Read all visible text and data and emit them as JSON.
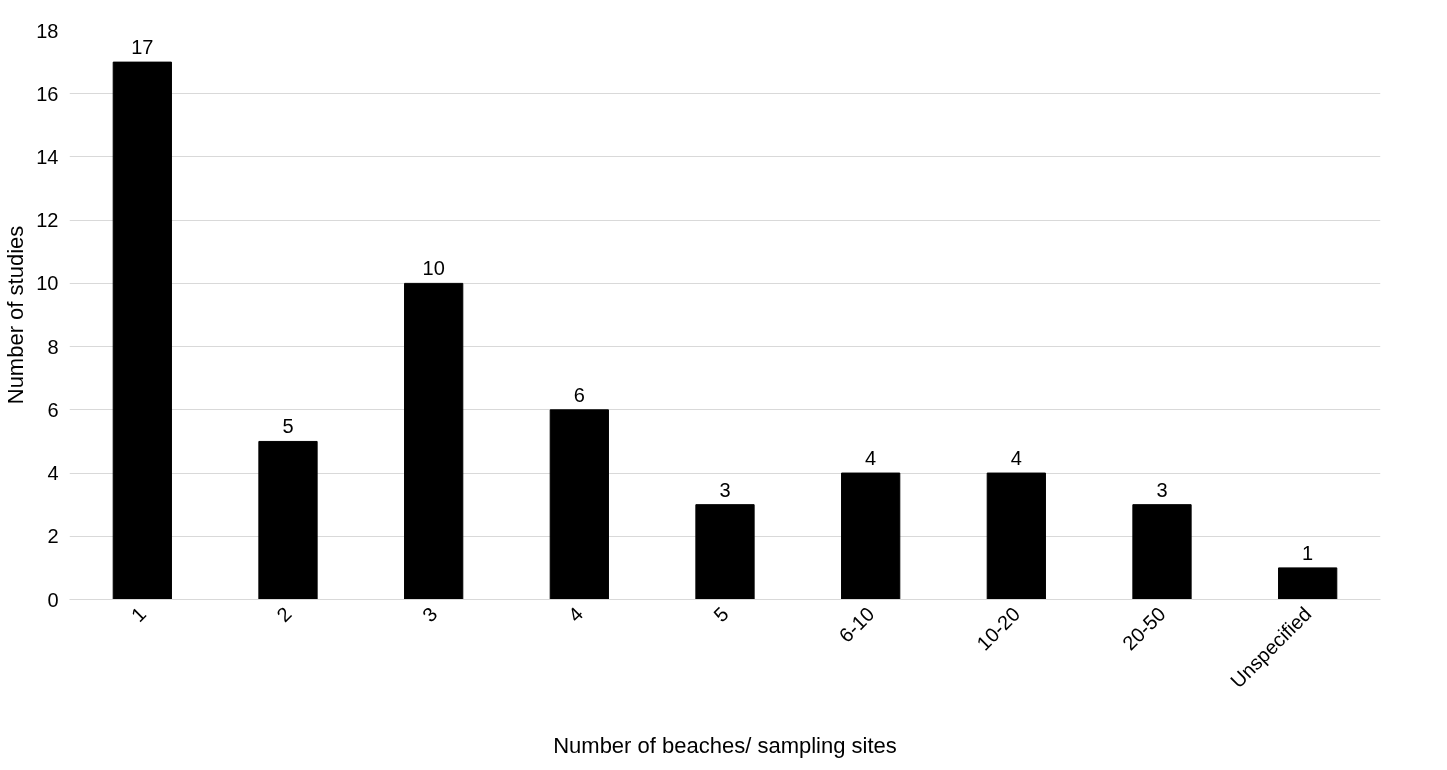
{
  "chart_data": {
    "type": "bar",
    "xlabel": "Number of beaches/ sampling sites",
    "ylabel": "Number of studies",
    "categories": [
      "1",
      "2",
      "3",
      "4",
      "5",
      "6-10",
      "10-20",
      "20-50",
      "Unspecified"
    ],
    "values": [
      17,
      5,
      10,
      6,
      3,
      4,
      4,
      3,
      1
    ],
    "color": "#000000",
    "ylim": [
      0,
      18
    ],
    "yticks": [
      0,
      2,
      4,
      6,
      8,
      10,
      12,
      14,
      16,
      18
    ],
    "grid": "y",
    "data_labels": true
  }
}
